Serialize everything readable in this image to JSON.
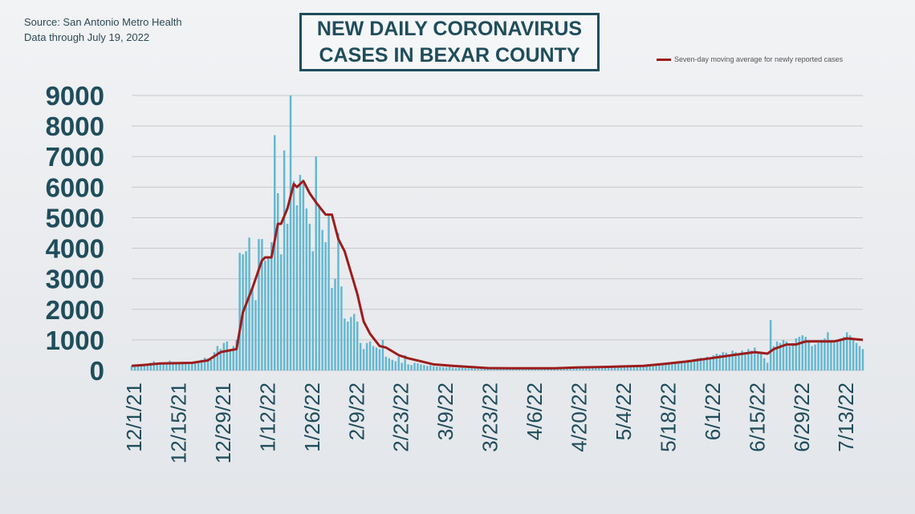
{
  "source_line1": "Source: San Antonio Metro Health",
  "source_line2": "Data through  July 19, 2022",
  "title_line1": "NEW DAILY CORONAVIRUS",
  "title_line2": "CASES IN BEXAR COUNTY",
  "legend_label": "Seven-day moving average for newly reported cases",
  "colors": {
    "bar": "#63b7d0",
    "line": "#9c1c1c",
    "axis_text": "#1f4d5c",
    "grid": "#c6c9cd"
  },
  "chart_data": {
    "type": "bar",
    "title": "NEW DAILY CORONAVIRUS CASES IN BEXAR COUNTY",
    "xlabel": "",
    "ylabel": "",
    "ylim": [
      0,
      9000
    ],
    "yticks": [
      0,
      1000,
      2000,
      3000,
      4000,
      5000,
      6000,
      7000,
      8000,
      9000
    ],
    "grid": true,
    "legend_position": "top-right",
    "x_start": "12/1/21",
    "x_end": "7/19/22",
    "xtick_labels": [
      "12/1/21",
      "12/15/21",
      "12/29/21",
      "1/12/22",
      "1/26/22",
      "2/9/22",
      "2/23/22",
      "3/9/22",
      "3/23/22",
      "4/6/22",
      "4/20/22",
      "5/4/22",
      "5/18/22",
      "6/1/22",
      "6/15/22",
      "6/29/22",
      "7/13/22"
    ],
    "bars": [
      [
        "12/1/21",
        150
      ],
      [
        "12/2/21",
        200
      ],
      [
        "12/3/21",
        180
      ],
      [
        "12/4/21",
        160
      ],
      [
        "12/5/21",
        190
      ],
      [
        "12/6/21",
        220
      ],
      [
        "12/7/21",
        250
      ],
      [
        "12/8/21",
        300
      ],
      [
        "12/9/21",
        240
      ],
      [
        "12/10/21",
        220
      ],
      [
        "12/11/21",
        200
      ],
      [
        "12/12/21",
        260
      ],
      [
        "12/13/21",
        320
      ],
      [
        "12/14/21",
        280
      ],
      [
        "12/15/21",
        250
      ],
      [
        "12/16/21",
        210
      ],
      [
        "12/17/21",
        240
      ],
      [
        "12/18/21",
        220
      ],
      [
        "12/19/21",
        200
      ],
      [
        "12/20/21",
        260
      ],
      [
        "12/21/21",
        300
      ],
      [
        "12/22/21",
        250
      ],
      [
        "12/23/21",
        350
      ],
      [
        "12/24/21",
        420
      ],
      [
        "12/25/21",
        400
      ],
      [
        "12/26/21",
        350
      ],
      [
        "12/27/21",
        600
      ],
      [
        "12/28/21",
        800
      ],
      [
        "12/29/21",
        700
      ],
      [
        "12/30/21",
        900
      ],
      [
        "12/31/21",
        950
      ],
      [
        "1/1/22",
        700
      ],
      [
        "1/2/22",
        800
      ],
      [
        "1/3/22",
        1000
      ],
      [
        "1/4/22",
        3850
      ],
      [
        "1/5/22",
        3800
      ],
      [
        "1/6/22",
        3900
      ],
      [
        "1/7/22",
        4350
      ],
      [
        "1/8/22",
        2700
      ],
      [
        "1/9/22",
        2300
      ],
      [
        "1/10/22",
        4300
      ],
      [
        "1/11/22",
        4300
      ],
      [
        "1/12/22",
        3600
      ],
      [
        "1/13/22",
        3700
      ],
      [
        "1/14/22",
        4200
      ],
      [
        "1/15/22",
        7700
      ],
      [
        "1/16/22",
        5800
      ],
      [
        "1/17/22",
        3800
      ],
      [
        "1/18/22",
        7200
      ],
      [
        "1/19/22",
        4800
      ],
      [
        "1/20/22",
        9000
      ],
      [
        "1/21/22",
        6200
      ],
      [
        "1/22/22",
        5400
      ],
      [
        "1/23/22",
        6400
      ],
      [
        "1/24/22",
        6100
      ],
      [
        "1/25/22",
        5300
      ],
      [
        "1/26/22",
        4800
      ],
      [
        "1/27/22",
        3900
      ],
      [
        "1/28/22",
        7000
      ],
      [
        "1/29/22",
        5400
      ],
      [
        "1/30/22",
        4600
      ],
      [
        "1/31/22",
        4200
      ],
      [
        "2/1/22",
        5100
      ],
      [
        "2/2/22",
        2700
      ],
      [
        "2/3/22",
        3000
      ],
      [
        "2/4/22",
        4500
      ],
      [
        "2/5/22",
        2750
      ],
      [
        "2/6/22",
        1700
      ],
      [
        "2/7/22",
        1600
      ],
      [
        "2/8/22",
        1750
      ],
      [
        "2/9/22",
        1850
      ],
      [
        "2/10/22",
        1600
      ],
      [
        "2/11/22",
        900
      ],
      [
        "2/12/22",
        700
      ],
      [
        "2/13/22",
        900
      ],
      [
        "2/14/22",
        950
      ],
      [
        "2/15/22",
        800
      ],
      [
        "2/16/22",
        750
      ],
      [
        "2/17/22",
        700
      ],
      [
        "2/18/22",
        1000
      ],
      [
        "2/19/22",
        450
      ],
      [
        "2/20/22",
        400
      ],
      [
        "2/21/22",
        350
      ],
      [
        "2/22/22",
        300
      ],
      [
        "2/23/22",
        450
      ],
      [
        "2/24/22",
        250
      ],
      [
        "2/25/22",
        500
      ],
      [
        "2/26/22",
        200
      ],
      [
        "2/27/22",
        180
      ],
      [
        "2/28/22",
        250
      ],
      [
        "3/1/22",
        230
      ],
      [
        "3/2/22",
        200
      ],
      [
        "3/3/22",
        180
      ],
      [
        "3/4/22",
        150
      ],
      [
        "3/5/22",
        170
      ],
      [
        "3/6/22",
        140
      ],
      [
        "3/7/22",
        130
      ],
      [
        "3/8/22",
        120
      ],
      [
        "3/9/22",
        110
      ],
      [
        "3/10/22",
        100
      ],
      [
        "3/11/22",
        110
      ],
      [
        "3/12/22",
        90
      ],
      [
        "3/13/22",
        80
      ],
      [
        "3/14/22",
        90
      ],
      [
        "3/15/22",
        100
      ],
      [
        "3/16/22",
        80
      ],
      [
        "3/17/22",
        70
      ],
      [
        "3/18/22",
        80
      ],
      [
        "3/19/22",
        60
      ],
      [
        "3/20/22",
        50
      ],
      [
        "3/21/22",
        60
      ],
      [
        "3/22/22",
        70
      ],
      [
        "3/23/22",
        60
      ],
      [
        "3/24/22",
        50
      ],
      [
        "3/25/22",
        60
      ],
      [
        "3/26/22",
        50
      ],
      [
        "3/27/22",
        40
      ],
      [
        "3/28/22",
        50
      ],
      [
        "3/29/22",
        60
      ],
      [
        "3/30/22",
        50
      ],
      [
        "3/31/22",
        60
      ],
      [
        "4/1/22",
        50
      ],
      [
        "4/2/22",
        40
      ],
      [
        "4/3/22",
        70
      ],
      [
        "4/4/22",
        50
      ],
      [
        "4/5/22",
        60
      ],
      [
        "4/6/22",
        50
      ],
      [
        "4/7/22",
        60
      ],
      [
        "4/8/22",
        40
      ],
      [
        "4/9/22",
        50
      ],
      [
        "4/10/22",
        60
      ],
      [
        "4/11/22",
        50
      ],
      [
        "4/12/22",
        60
      ],
      [
        "4/13/22",
        70
      ],
      [
        "4/14/22",
        60
      ],
      [
        "4/15/22",
        80
      ],
      [
        "4/16/22",
        70
      ],
      [
        "4/17/22",
        60
      ],
      [
        "4/18/22",
        80
      ],
      [
        "4/19/22",
        90
      ],
      [
        "4/20/22",
        100
      ],
      [
        "4/21/22",
        90
      ],
      [
        "4/22/22",
        110
      ],
      [
        "4/23/22",
        100
      ],
      [
        "4/24/22",
        90
      ],
      [
        "4/25/22",
        110
      ],
      [
        "4/26/22",
        120
      ],
      [
        "4/27/22",
        100
      ],
      [
        "4/28/22",
        110
      ],
      [
        "4/29/22",
        120
      ],
      [
        "4/30/22",
        100
      ],
      [
        "5/1/22",
        110
      ],
      [
        "5/2/22",
        130
      ],
      [
        "5/3/22",
        120
      ],
      [
        "5/4/22",
        140
      ],
      [
        "5/5/22",
        130
      ],
      [
        "5/6/22",
        150
      ],
      [
        "5/7/22",
        140
      ],
      [
        "5/8/22",
        130
      ],
      [
        "5/9/22",
        160
      ],
      [
        "5/10/22",
        150
      ],
      [
        "5/11/22",
        170
      ],
      [
        "5/12/22",
        160
      ],
      [
        "5/13/22",
        180
      ],
      [
        "5/14/22",
        200
      ],
      [
        "5/15/22",
        190
      ],
      [
        "5/16/22",
        220
      ],
      [
        "5/17/22",
        210
      ],
      [
        "5/18/22",
        250
      ],
      [
        "5/19/22",
        230
      ],
      [
        "5/20/22",
        260
      ],
      [
        "5/21/22",
        280
      ],
      [
        "5/22/22",
        300
      ],
      [
        "5/23/22",
        280
      ],
      [
        "5/24/22",
        320
      ],
      [
        "5/25/22",
        350
      ],
      [
        "5/26/22",
        340
      ],
      [
        "5/27/22",
        380
      ],
      [
        "5/28/22",
        400
      ],
      [
        "5/29/22",
        420
      ],
      [
        "5/30/22",
        400
      ],
      [
        "5/31/22",
        450
      ],
      [
        "6/1/22",
        430
      ],
      [
        "6/2/22",
        500
      ],
      [
        "6/3/22",
        550
      ],
      [
        "6/4/22",
        520
      ],
      [
        "6/5/22",
        600
      ],
      [
        "6/6/22",
        580
      ],
      [
        "6/7/22",
        500
      ],
      [
        "6/8/22",
        650
      ],
      [
        "6/9/22",
        600
      ],
      [
        "6/10/22",
        550
      ],
      [
        "6/11/22",
        650
      ],
      [
        "6/12/22",
        600
      ],
      [
        "6/13/22",
        700
      ],
      [
        "6/14/22",
        650
      ],
      [
        "6/15/22",
        750
      ],
      [
        "6/16/22",
        600
      ],
      [
        "6/17/22",
        550
      ],
      [
        "6/18/22",
        400
      ],
      [
        "6/19/22",
        250
      ],
      [
        "6/20/22",
        1650
      ],
      [
        "6/21/22",
        800
      ],
      [
        "6/22/22",
        950
      ],
      [
        "6/23/22",
        900
      ],
      [
        "6/24/22",
        1000
      ],
      [
        "6/25/22",
        950
      ],
      [
        "6/26/22",
        800
      ],
      [
        "6/27/22",
        900
      ],
      [
        "6/28/22",
        1050
      ],
      [
        "6/29/22",
        1100
      ],
      [
        "6/30/22",
        1150
      ],
      [
        "7/1/22",
        1100
      ],
      [
        "7/2/22",
        950
      ],
      [
        "7/3/22",
        800
      ],
      [
        "7/4/22",
        850
      ],
      [
        "7/5/22",
        900
      ],
      [
        "7/6/22",
        1000
      ],
      [
        "7/7/22",
        1050
      ],
      [
        "7/8/22",
        1250
      ],
      [
        "7/9/22",
        950
      ],
      [
        "7/10/22",
        900
      ],
      [
        "7/11/22",
        1000
      ],
      [
        "7/12/22",
        1050
      ],
      [
        "7/13/22",
        1100
      ],
      [
        "7/14/22",
        1250
      ],
      [
        "7/15/22",
        1150
      ],
      [
        "7/16/22",
        1000
      ],
      [
        "7/17/22",
        900
      ],
      [
        "7/18/22",
        800
      ],
      [
        "7/19/22",
        700
      ]
    ],
    "series": [
      {
        "name": "Seven-day moving average for newly reported cases",
        "type": "line",
        "points": [
          [
            "12/1/21",
            150
          ],
          [
            "12/5/21",
            180
          ],
          [
            "12/10/21",
            230
          ],
          [
            "12/15/21",
            240
          ],
          [
            "12/20/21",
            250
          ],
          [
            "12/25/21",
            330
          ],
          [
            "12/29/21",
            600
          ],
          [
            "1/3/22",
            700
          ],
          [
            "1/5/22",
            1900
          ],
          [
            "1/8/22",
            2700
          ],
          [
            "1/11/22",
            3600
          ],
          [
            "1/12/22",
            3700
          ],
          [
            "1/14/22",
            3700
          ],
          [
            "1/16/22",
            4800
          ],
          [
            "1/17/22",
            4800
          ],
          [
            "1/19/22",
            5300
          ],
          [
            "1/21/22",
            6100
          ],
          [
            "1/22/22",
            6000
          ],
          [
            "1/24/22",
            6200
          ],
          [
            "1/26/22",
            5800
          ],
          [
            "1/28/22",
            5500
          ],
          [
            "1/31/22",
            5100
          ],
          [
            "2/2/22",
            5100
          ],
          [
            "2/4/22",
            4300
          ],
          [
            "2/6/22",
            3900
          ],
          [
            "2/8/22",
            3200
          ],
          [
            "2/10/22",
            2500
          ],
          [
            "2/12/22",
            1600
          ],
          [
            "2/14/22",
            1200
          ],
          [
            "2/17/22",
            800
          ],
          [
            "2/19/22",
            750
          ],
          [
            "2/23/22",
            500
          ],
          [
            "2/26/22",
            400
          ],
          [
            "3/2/22",
            300
          ],
          [
            "3/6/22",
            200
          ],
          [
            "3/12/22",
            150
          ],
          [
            "3/20/22",
            100
          ],
          [
            "3/23/22",
            80
          ],
          [
            "4/1/22",
            70
          ],
          [
            "4/6/22",
            70
          ],
          [
            "4/13/22",
            70
          ],
          [
            "4/20/22",
            100
          ],
          [
            "4/27/22",
            110
          ],
          [
            "5/4/22",
            130
          ],
          [
            "5/11/22",
            150
          ],
          [
            "5/18/22",
            220
          ],
          [
            "5/25/22",
            300
          ],
          [
            "6/1/22",
            400
          ],
          [
            "6/8/22",
            500
          ],
          [
            "6/15/22",
            600
          ],
          [
            "6/19/22",
            550
          ],
          [
            "6/21/22",
            700
          ],
          [
            "6/25/22",
            850
          ],
          [
            "6/28/22",
            850
          ],
          [
            "7/1/22",
            950
          ],
          [
            "7/6/22",
            950
          ],
          [
            "7/10/22",
            950
          ],
          [
            "7/14/22",
            1050
          ],
          [
            "7/19/22",
            1000
          ]
        ]
      }
    ]
  }
}
